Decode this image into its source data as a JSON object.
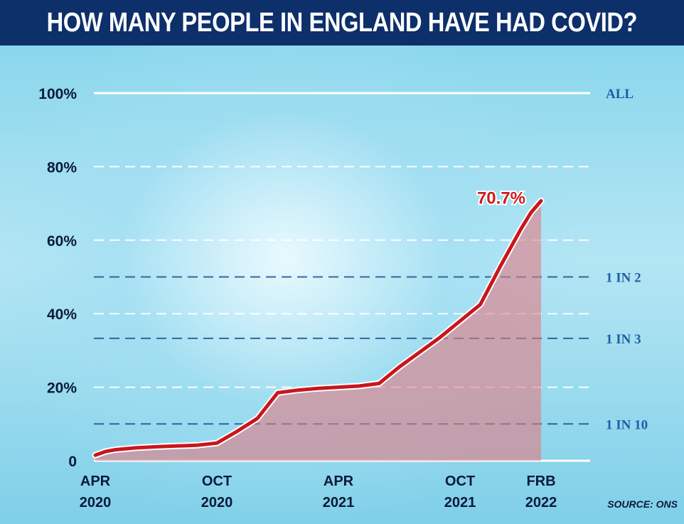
{
  "header": {
    "title": "HOW MANY PEOPLE IN ENGLAND HAVE HAD COVID?"
  },
  "colors": {
    "header_bg": "#0d2f6a",
    "line": "#c8161d",
    "area": "#e27a82",
    "grid_white": "#ffffff",
    "grid_blue": "#1e4f8f",
    "ref_label": "#1e5ea8"
  },
  "source_label": "SOURCE: ONS",
  "chart_data": {
    "type": "area",
    "title": "HOW MANY PEOPLE IN ENGLAND HAVE HAD COVID?",
    "xlabel": "",
    "ylabel": "",
    "ylim": [
      0,
      100
    ],
    "y_ticks": [
      {
        "value": 0,
        "label": "0"
      },
      {
        "value": 20,
        "label": "20%"
      },
      {
        "value": 40,
        "label": "40%"
      },
      {
        "value": 60,
        "label": "60%"
      },
      {
        "value": 80,
        "label": "80%"
      },
      {
        "value": 100,
        "label": "100%"
      }
    ],
    "x_ticks": [
      {
        "t": 0,
        "line1": "APR",
        "line2": "2020"
      },
      {
        "t": 6,
        "line1": "OCT",
        "line2": "2020"
      },
      {
        "t": 12,
        "line1": "APR",
        "line2": "2021"
      },
      {
        "t": 18,
        "line1": "OCT",
        "line2": "2021"
      },
      {
        "t": 22,
        "line1": "FRB",
        "line2": "2022"
      }
    ],
    "reference_lines": [
      {
        "value": 100,
        "label": "ALL",
        "style": "white-solid"
      },
      {
        "value": 50,
        "label": "1 IN 2",
        "style": "blue-dashed"
      },
      {
        "value": 33.3,
        "label": "1 IN 3",
        "style": "blue-dashed"
      },
      {
        "value": 10,
        "label": "1 IN 10",
        "style": "blue-dashed"
      }
    ],
    "grid": true,
    "series": [
      {
        "x": [
          0,
          0.5,
          1,
          2,
          3,
          4,
          5,
          6,
          7,
          8,
          9,
          10,
          11,
          12,
          13,
          14,
          15,
          16,
          17,
          18,
          19,
          20,
          20.5,
          21,
          21.5,
          22
        ],
        "values": [
          1.5,
          2.5,
          3.0,
          3.5,
          3.8,
          4.0,
          4.2,
          4.8,
          8.0,
          11.5,
          18.5,
          19.2,
          19.7,
          20.0,
          20.3,
          21.0,
          25.5,
          29.5,
          33.5,
          38.0,
          42.5,
          53.0,
          58.0,
          63.0,
          67.5,
          70.7
        ]
      }
    ],
    "annotations": [
      {
        "x": 22,
        "y": 70.7,
        "text": "70.7%"
      }
    ]
  }
}
